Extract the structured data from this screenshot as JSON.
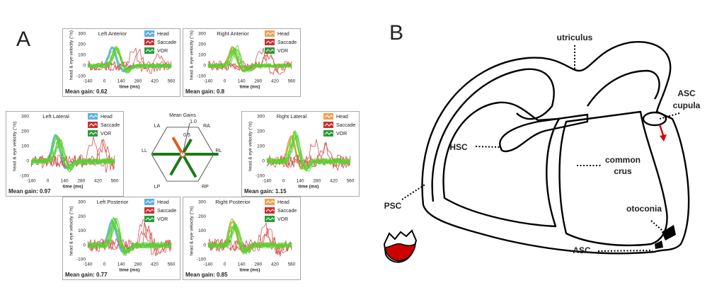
{
  "panel_a": {
    "label": "A",
    "plots": [
      {
        "title": "Left Anterior",
        "mean_gain": "Mean gain: 0.62"
      },
      {
        "title": "Right Anterior",
        "mean_gain": "Mean gain: 0.8"
      },
      {
        "title": "Left Lateral",
        "mean_gain": "Mean gain: 0.97"
      },
      {
        "title": "Right Lateral",
        "mean_gain": "Mean gain: 1.15"
      },
      {
        "title": "Left Posterior",
        "mean_gain": "Mean gain: 0.77"
      },
      {
        "title": "Right Posterior",
        "mean_gain": "Mean gain: 0.85"
      }
    ],
    "y_label": "head & eye velocity (°/s)",
    "x_label": "time (ms)",
    "yticks": [
      300,
      200,
      100,
      0,
      -100
    ],
    "xticks": [
      -140,
      0,
      140,
      280,
      420,
      560
    ],
    "legend": [
      "Head",
      "Saccade",
      "VOR"
    ],
    "hexagon": {
      "title": "Mean Gains",
      "axes": [
        "LA",
        "RA",
        "LL",
        "RL",
        "LP",
        "RP"
      ],
      "ticks": [
        "1.0",
        "0.5"
      ]
    }
  },
  "panel_b": {
    "label": "B",
    "labels": {
      "utriculus": "utriculus",
      "cupula_1": "ASC",
      "cupula_2": "cupula",
      "hsc": "HSC",
      "crus_1": "common",
      "crus_2": "crus",
      "psc": "PSC",
      "otoconia": "otoconia",
      "asc": "ASC"
    }
  }
}
